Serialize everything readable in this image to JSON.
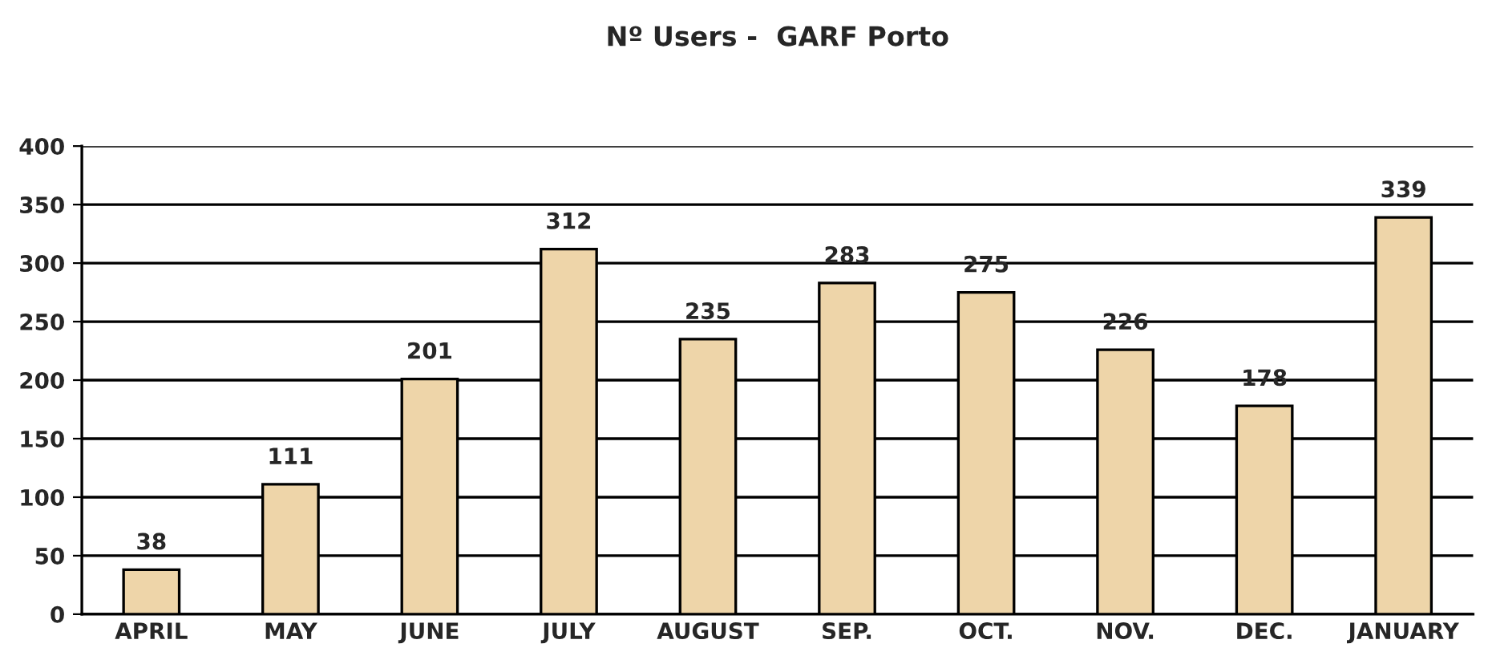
{
  "chart_data": {
    "type": "bar",
    "title": "Nº Users -  GARF Porto",
    "categories": [
      "APRIL",
      "MAY",
      "JUNE",
      "JULY",
      "AUGUST",
      "SEP.",
      "OCT.",
      "NOV.",
      "DEC.",
      "JANUARY"
    ],
    "values": [
      38,
      111,
      201,
      312,
      235,
      283,
      275,
      226,
      178,
      339
    ],
    "color": "#eed5a9",
    "ylim": [
      0,
      400
    ],
    "yticks": [
      0,
      50,
      100,
      150,
      200,
      250,
      300,
      350,
      400
    ],
    "grid": "y",
    "data_labels": true
  }
}
